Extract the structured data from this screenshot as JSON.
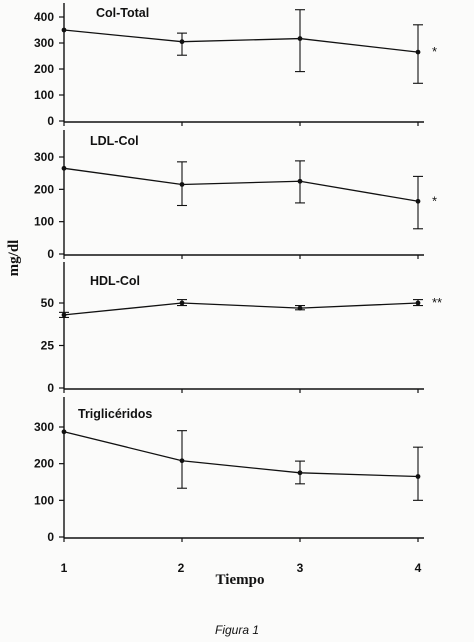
{
  "figure": {
    "caption": "Figura 1",
    "xlabel": "Tiempo",
    "ylabel": "mg/dl"
  },
  "chart_data": [
    {
      "type": "line",
      "title": "Col-Total",
      "x": [
        1,
        2,
        3,
        4
      ],
      "values": [
        350,
        305,
        317,
        265
      ],
      "error_low": [
        350,
        253,
        190,
        145
      ],
      "error_high": [
        350,
        338,
        428,
        370
      ],
      "ylim": [
        0,
        440
      ],
      "yticks": [
        0,
        100,
        200,
        300,
        400
      ],
      "annotation": "*"
    },
    {
      "type": "line",
      "title": "LDL-Col",
      "x": [
        1,
        2,
        3,
        4
      ],
      "values": [
        265,
        215,
        225,
        163
      ],
      "error_low": [
        265,
        150,
        158,
        78
      ],
      "error_high": [
        265,
        285,
        288,
        240
      ],
      "ylim": [
        0,
        360
      ],
      "yticks": [
        0,
        100,
        200,
        300
      ],
      "annotation": "*"
    },
    {
      "type": "line",
      "title": "HDL-Col",
      "x": [
        1,
        2,
        3,
        4
      ],
      "values": [
        43,
        50,
        47,
        50
      ],
      "error_low": [
        41.5,
        48.5,
        46,
        48.5
      ],
      "error_high": [
        44.5,
        52,
        48.5,
        52
      ],
      "ylim": [
        0,
        60
      ],
      "yticks": [
        0,
        25,
        50
      ],
      "annotation": "**"
    },
    {
      "type": "line",
      "title": "Triglicéridos",
      "x": [
        1,
        2,
        3,
        4
      ],
      "values": [
        287,
        208,
        175,
        165
      ],
      "error_low": [
        287,
        133,
        145,
        100
      ],
      "error_high": [
        287,
        290,
        207,
        245
      ],
      "ylim": [
        0,
        360
      ],
      "yticks": [
        0,
        100,
        200,
        300
      ],
      "annotation": ""
    }
  ]
}
